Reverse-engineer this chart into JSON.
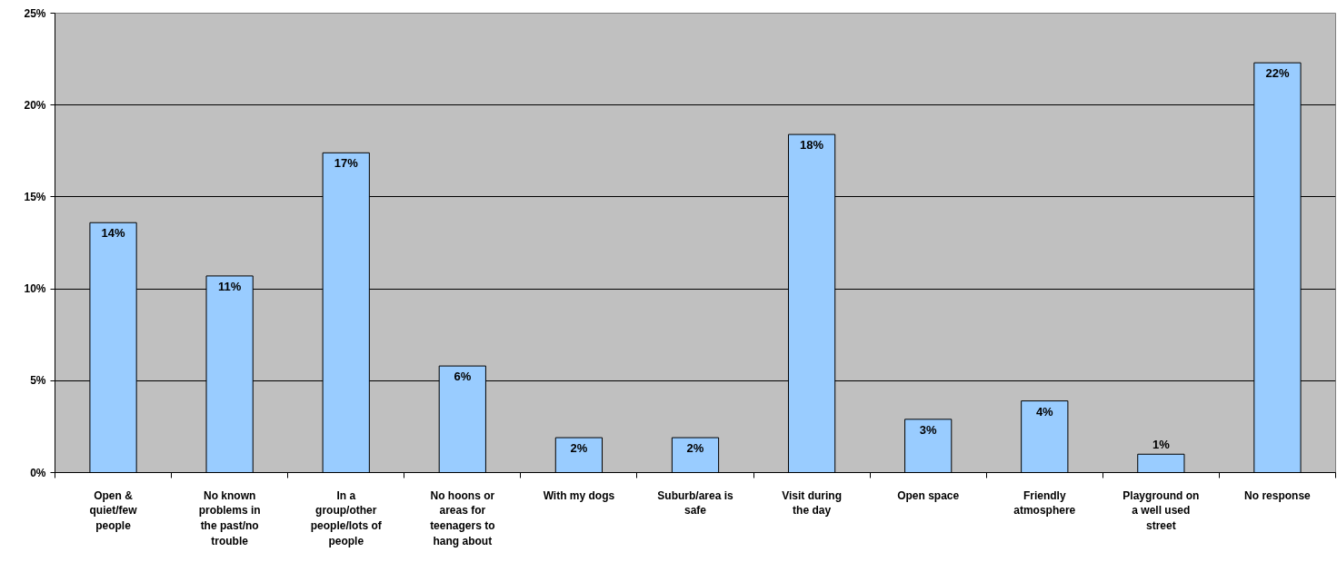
{
  "chart_data": {
    "type": "bar",
    "categories": [
      "Open & quiet/few people",
      "No known problems in the past/no trouble",
      "In a group/other people/lots of people",
      "No hoons or areas for teenagers to hang about",
      "With my dogs",
      "Suburb/area is safe",
      "Visit during the day",
      "Open space",
      "Friendly atmosphere",
      "Playground on a well used street",
      "No response"
    ],
    "values": [
      13.6,
      10.7,
      17.4,
      5.8,
      1.9,
      1.9,
      18.4,
      2.9,
      3.9,
      1.0,
      22.3
    ],
    "value_labels": [
      "14%",
      "11%",
      "17%",
      "6%",
      "2%",
      "2%",
      "18%",
      "3%",
      "4%",
      "1%",
      "22%"
    ],
    "color": "#99ccff",
    "ylim": [
      0,
      25
    ],
    "yticks": [
      {
        "value": 0,
        "label": "0%"
      },
      {
        "value": 5,
        "label": "5%"
      },
      {
        "value": 10,
        "label": "10%"
      },
      {
        "value": 15,
        "label": "15%"
      },
      {
        "value": 20,
        "label": "20%"
      },
      {
        "value": 25,
        "label": "25%"
      }
    ],
    "grid": "y"
  }
}
